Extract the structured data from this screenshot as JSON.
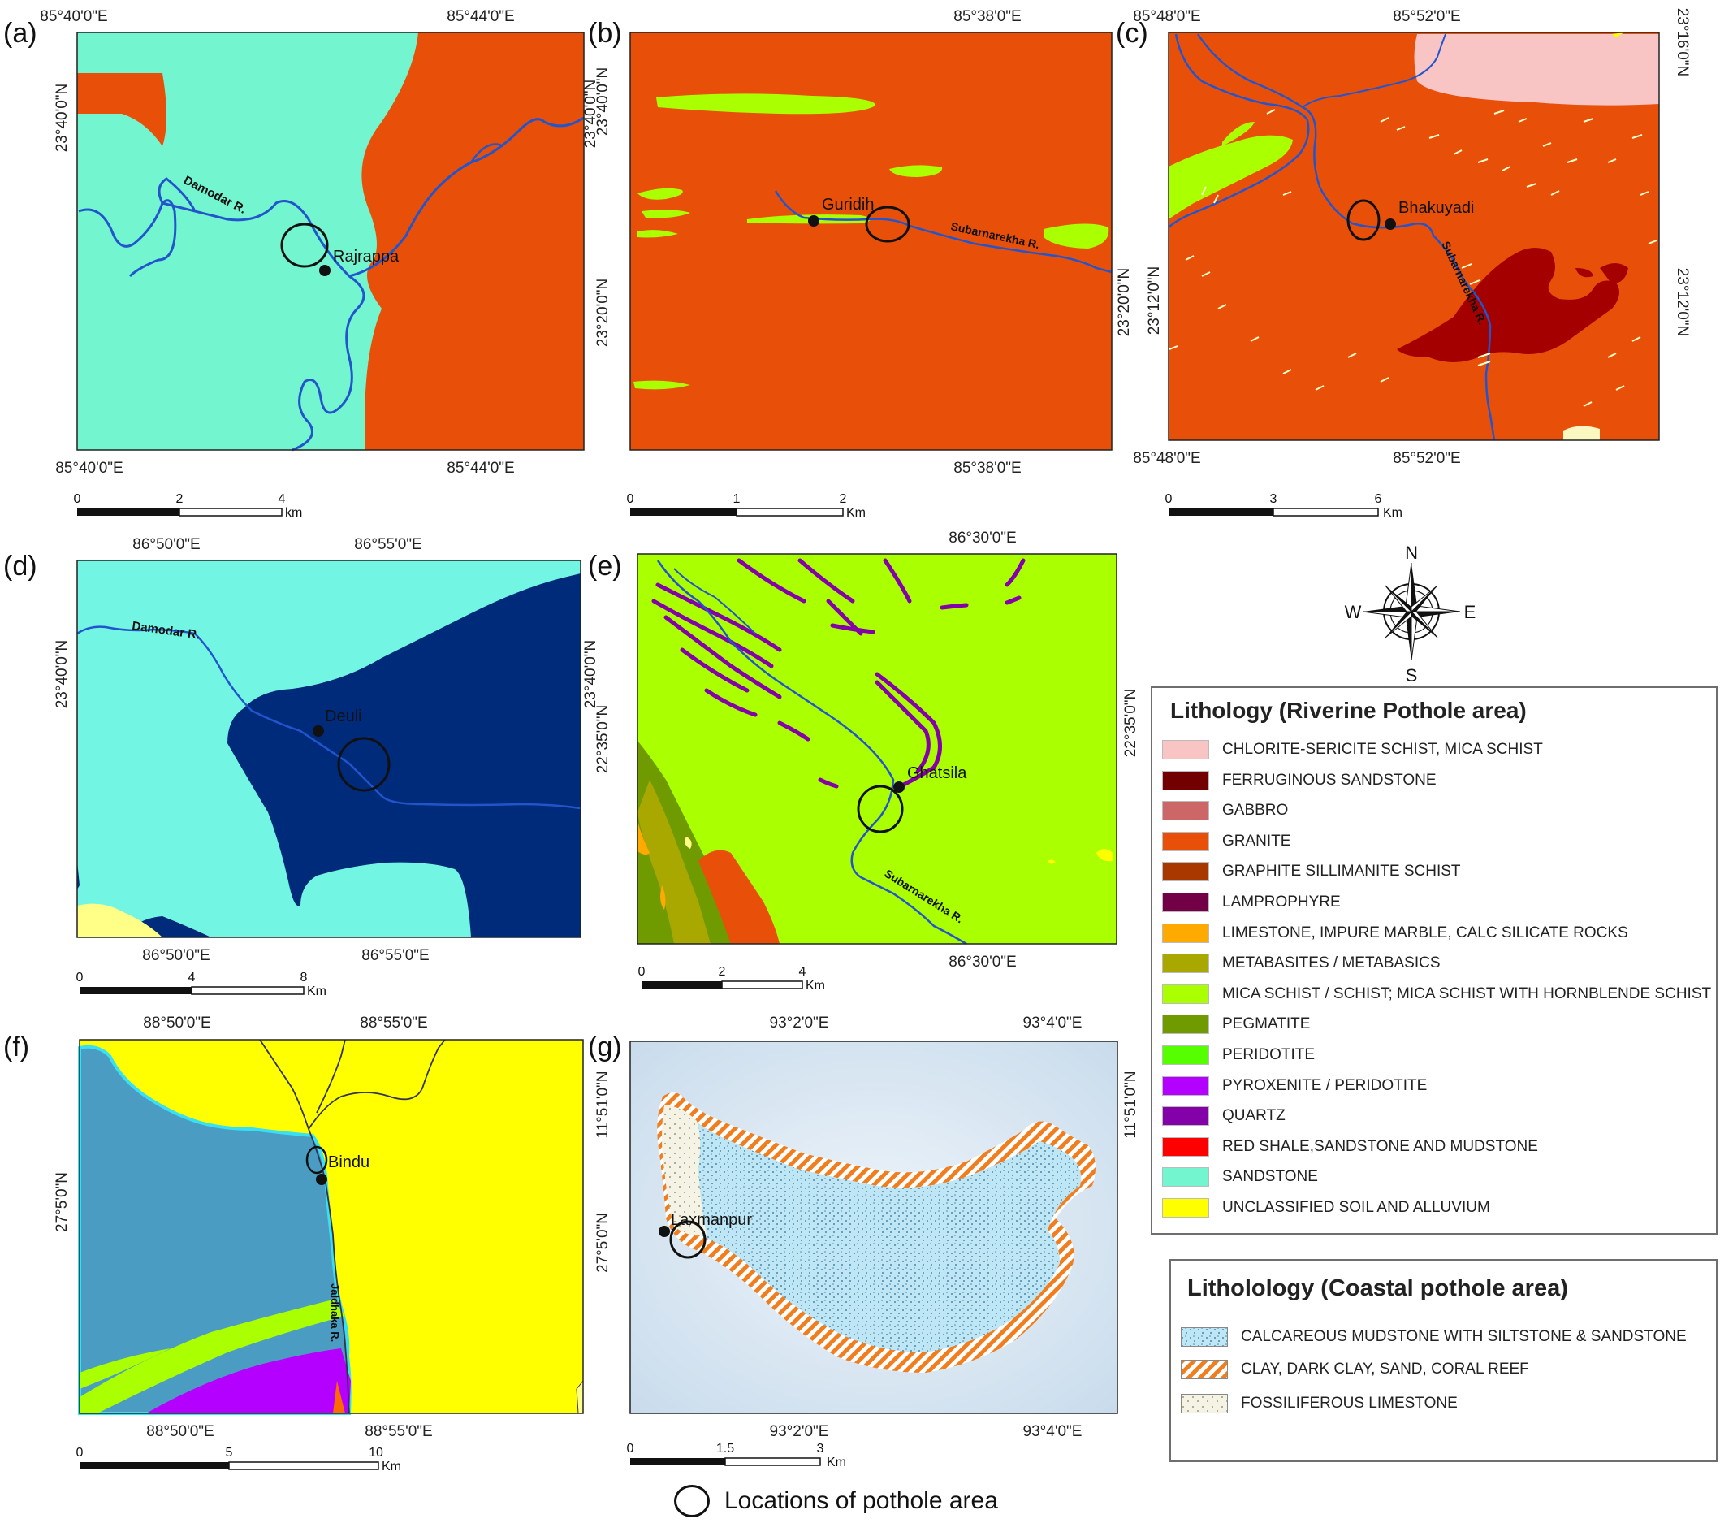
{
  "panels": {
    "a": {
      "label": "(a)",
      "top_lon": [
        "85°40'0\"E",
        "85°44'0\"E"
      ],
      "bottom_lon": [
        "85°40'0\"E",
        "85°44'0\"E"
      ],
      "left_lat": "23°40'0\"N",
      "right_lat": "23°40'0\"N",
      "river": "Damodar R.",
      "site": "Rajrappa",
      "scale": [
        "0",
        "2",
        "4"
      ],
      "unit": "km"
    },
    "b": {
      "label": "(b)",
      "top_lon": "85°38'0\"E",
      "bottom_lon": "85°38'0\"E",
      "left_lat": [
        "23°40'0\"N",
        "23°20'0\"N"
      ],
      "right_lat": "23°20'0\"N",
      "river": "Subarnarekha R.",
      "site": "Guridih",
      "scale": [
        "0",
        "1",
        "2"
      ],
      "unit": "Km"
    },
    "c": {
      "label": "(c)",
      "top_lon": [
        "85°48'0\"E",
        "85°52'0\"E"
      ],
      "bottom_lon": [
        "85°48'0\"E",
        "85°52'0\"E"
      ],
      "left_lat": "23°12'0\"N",
      "right_lat": [
        "23°16'0\"N",
        "23°12'0\"N"
      ],
      "river": "Subarnarekha R.",
      "site": "Bhakuyadi",
      "scale": [
        "0",
        "3",
        "6"
      ],
      "unit": "Km"
    },
    "d": {
      "label": "(d)",
      "top_lon": [
        "86°50'0\"E",
        "86°55'0\"E"
      ],
      "bottom_lon": [
        "86°50'0\"E",
        "86°55'0\"E"
      ],
      "left_lat": "23°40'0\"N",
      "right_lat": "23°40'0\"N",
      "river": "Damodar R.",
      "site": "Deuli",
      "scale": [
        "0",
        "4",
        "8"
      ],
      "unit": "Km"
    },
    "e": {
      "label": "(e)",
      "top_lon": "86°30'0\"E",
      "bottom_lon": "86°30'0\"E",
      "left_lat": "22°35'0\"N",
      "right_lat": "22°35'0\"N",
      "river": "Subarnarekha R.",
      "site": "Ghatsila",
      "scale": [
        "0",
        "2",
        "4"
      ],
      "unit": "Km"
    },
    "f": {
      "label": "(f)",
      "top_lon": [
        "88°50'0\"E",
        "88°55'0\"E"
      ],
      "bottom_lon": [
        "88°50'0\"E",
        "88°55'0\"E"
      ],
      "left_lat": "27°5'0\"N",
      "river": "Jaldhaka R.",
      "site": "Bindu",
      "scale": [
        "0",
        "5",
        "10"
      ],
      "unit": "Km"
    },
    "g": {
      "label": "(g)",
      "top_lon": [
        "93°2'0\"E",
        "93°4'0\"E"
      ],
      "bottom_lon": [
        "93°2'0\"E",
        "93°4'0\"E"
      ],
      "left_lat": [
        "11°51'0\"N",
        "27°5'0\"N"
      ],
      "right_lat": "11°51'0\"N",
      "site": "Laxmanpur",
      "scale": [
        "0",
        "1.5",
        "3"
      ],
      "unit": "Km"
    }
  },
  "compass": {
    "n": "N",
    "s": "S",
    "e": "E",
    "w": "W"
  },
  "riverine_legend": {
    "title": "Lithology (Riverine Pothole area)",
    "items": [
      {
        "label": "CHLORITE-SERICITE SCHIST, MICA SCHIST",
        "color": "#f9c4c4"
      },
      {
        "label": "FERRUGINOUS SANDSTONE",
        "color": "#730000"
      },
      {
        "label": "GABBRO",
        "color": "#cd6666"
      },
      {
        "label": "GRANITE",
        "color": "#e8500a"
      },
      {
        "label": "GRAPHITE SILLIMANITE SCHIST",
        "color": "#a83800"
      },
      {
        "label": "LAMPROPHYRE",
        "color": "#730046"
      },
      {
        "label": "LIMESTONE, IMPURE MARBLE, CALC SILICATE ROCKS",
        "color": "#ffaa00"
      },
      {
        "label": "METABASITES / METABASICS",
        "color": "#a8a800"
      },
      {
        "label": "MICA SCHIST / SCHIST; MICA SCHIST WITH HORNBLENDE SCHIST",
        "color": "#aaff00"
      },
      {
        "label": "PEGMATITE",
        "color": "#6f9a00"
      },
      {
        "label": "PERIDOTITE",
        "color": "#55ff00"
      },
      {
        "label": "PYROXENITE / PERIDOTITE",
        "color": "#b400ff"
      },
      {
        "label": "QUARTZ",
        "color": "#8400a8"
      },
      {
        "label": "RED SHALE,SANDSTONE AND MUDSTONE",
        "color": "#ff0000"
      },
      {
        "label": "SANDSTONE",
        "color": "#73f5cf"
      },
      {
        "label": "UNCLASSIFIED SOIL AND ALLUVIUM",
        "color": "#ffff00"
      }
    ]
  },
  "coastal_legend": {
    "title": "Litholology (Coastal pothole area)",
    "items": [
      {
        "label": "CALCAREOUS MUDSTONE WITH SILTSTONE & SANDSTONE",
        "pattern": "dots-blue"
      },
      {
        "label": "CLAY, DARK CLAY, SAND, CORAL REEF",
        "pattern": "hatch-orange"
      },
      {
        "label": "FOSSILIFEROUS LIMESTONE",
        "pattern": "dots-cream"
      }
    ]
  },
  "note": {
    "label": "Locations of pothole area"
  }
}
